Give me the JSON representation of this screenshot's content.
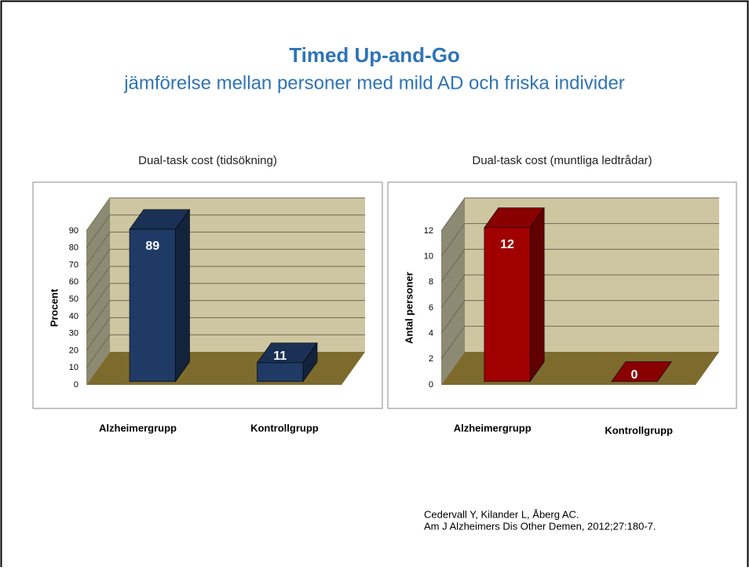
{
  "slide": {
    "title": "Timed Up-and-Go",
    "subtitle": "jämförelse mellan personer med mild AD och friska individer",
    "citation": [
      "Cedervall Y, Kilander L, Åberg AC.",
      "Am J Alzheimers Dis Other Demen, 2012;27:180-7."
    ]
  },
  "chart_data": [
    {
      "type": "bar3d",
      "title": "Dual-task cost (tidsökning)",
      "ylabel": "Procent",
      "categories": [
        "Alzheimergrupp",
        "Kontrollgrupp"
      ],
      "values": [
        89,
        11
      ],
      "color": "#1f3a64",
      "ylim": [
        0,
        90
      ],
      "yticks": [
        0,
        10,
        20,
        30,
        40,
        50,
        60,
        70,
        80,
        90
      ],
      "grid": true
    },
    {
      "type": "bar3d",
      "title": "Dual-task cost (muntliga ledtrådar)",
      "ylabel": "Antal personer",
      "categories": [
        "Alzheimergrupp",
        "Kontrollgrupp"
      ],
      "values": [
        12,
        0
      ],
      "color": "#a00000",
      "ylim": [
        0,
        12
      ],
      "yticks": [
        0,
        2,
        4,
        6,
        8,
        10,
        12
      ],
      "grid": true
    }
  ]
}
